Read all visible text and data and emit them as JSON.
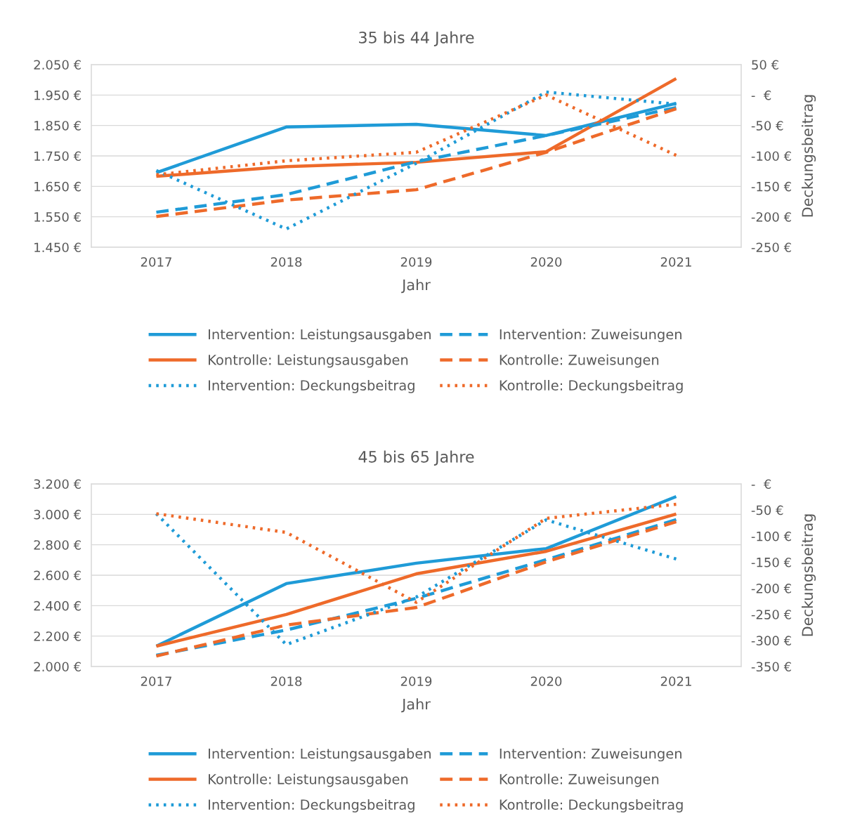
{
  "chart_data": [
    {
      "type": "line",
      "title": "35 bis 44 Jahre",
      "xlabel": "Jahr",
      "y2label": "Deckungsbeitrag",
      "categories": [
        "2017",
        "2018",
        "2019",
        "2020",
        "2021"
      ],
      "ylim": [
        1450,
        2050
      ],
      "yticks": [
        {
          "value": 1450,
          "label": "1.450 €"
        },
        {
          "value": 1550,
          "label": "1.550 €"
        },
        {
          "value": 1650,
          "label": "1.650 €"
        },
        {
          "value": 1750,
          "label": "1.750 €"
        },
        {
          "value": 1850,
          "label": "1.850 €"
        },
        {
          "value": 1950,
          "label": "1.950 €"
        },
        {
          "value": 2050,
          "label": "2.050 €"
        }
      ],
      "y2lim": [
        -250,
        50
      ],
      "y2ticks": [
        {
          "value": -250,
          "label": "-250 €"
        },
        {
          "value": -200,
          "label": "-200 €"
        },
        {
          "value": -150,
          "label": "-150 €"
        },
        {
          "value": -100,
          "label": "-100 €"
        },
        {
          "value": -50,
          "label": "-50 €"
        },
        {
          "value": 0,
          "label": "-  €"
        },
        {
          "value": 50,
          "label": "50 €"
        }
      ],
      "grid": "y",
      "legend": "bottom",
      "marker": "none",
      "series": [
        {
          "name": "Intervention: Leistungsausgaben",
          "color": "#1f9bd7",
          "line_style": "solid",
          "values": [
            1695,
            1845,
            1854,
            1817,
            1923
          ]
        },
        {
          "name": "Kontrolle: Leistungsausgaben",
          "color": "#ee6a2a",
          "line_style": "solid",
          "values": [
            1683,
            1715,
            1729,
            1764,
            2004
          ]
        },
        {
          "name": "Intervention: Deckungsbeitrag",
          "color": "#1f9bd7",
          "line_style": "dotted",
          "axis": "y2",
          "values": [
            -124,
            -220,
            -112,
            5,
            -15
          ]
        },
        {
          "name": "Intervention: Zuweisungen",
          "color": "#1f9bd7",
          "line_style": "dashed",
          "values": [
            1565,
            1623,
            1731,
            1817,
            1909
          ]
        },
        {
          "name": "Kontrolle: Zuweisungen",
          "color": "#ee6a2a",
          "line_style": "dashed",
          "values": [
            1551,
            1605,
            1639,
            1762,
            1905
          ]
        },
        {
          "name": "Kontrolle: Deckungsbeitrag",
          "color": "#ee6a2a",
          "line_style": "dotted",
          "axis": "y2",
          "values": [
            -131,
            -108,
            -94,
            0,
            -99
          ]
        }
      ]
    },
    {
      "type": "line",
      "title": "45 bis 65 Jahre",
      "xlabel": "Jahr",
      "y2label": "Deckungsbeitrag",
      "categories": [
        "2017",
        "2018",
        "2019",
        "2020",
        "2021"
      ],
      "ylim": [
        2000,
        3200
      ],
      "yticks": [
        {
          "value": 2000,
          "label": "2.000 €"
        },
        {
          "value": 2200,
          "label": "2.200 €"
        },
        {
          "value": 2400,
          "label": "2.400 €"
        },
        {
          "value": 2600,
          "label": "2.600 €"
        },
        {
          "value": 2800,
          "label": "2.800 €"
        },
        {
          "value": 3000,
          "label": "3.000 €"
        },
        {
          "value": 3200,
          "label": "3.200 €"
        }
      ],
      "y2lim": [
        -350,
        0
      ],
      "y2ticks": [
        {
          "value": -350,
          "label": "-350 €"
        },
        {
          "value": -300,
          "label": "-300 €"
        },
        {
          "value": -250,
          "label": "-250 €"
        },
        {
          "value": -200,
          "label": "-200 €"
        },
        {
          "value": -150,
          "label": "-150 €"
        },
        {
          "value": -100,
          "label": "-100 €"
        },
        {
          "value": -50,
          "label": "-50 €"
        },
        {
          "value": 0,
          "label": "-  €"
        }
      ],
      "grid": "y",
      "legend": "bottom",
      "marker": "none",
      "series": [
        {
          "name": "Intervention: Leistungsausgaben",
          "color": "#1f9bd7",
          "line_style": "solid",
          "values": [
            2134,
            2545,
            2679,
            2775,
            3117
          ]
        },
        {
          "name": "Kontrolle: Leistungsausgaben",
          "color": "#ee6a2a",
          "line_style": "solid",
          "values": [
            2134,
            2342,
            2609,
            2757,
            3002
          ]
        },
        {
          "name": "Intervention: Deckungsbeitrag",
          "color": "#1f9bd7",
          "line_style": "dotted",
          "axis": "y2",
          "values": [
            -57,
            -308,
            -217,
            -69,
            -144
          ]
        },
        {
          "name": "Intervention: Zuweisungen",
          "color": "#1f9bd7",
          "line_style": "dashed",
          "values": [
            2074,
            2240,
            2448,
            2702,
            2965
          ]
        },
        {
          "name": "Kontrolle: Zuweisungen",
          "color": "#ee6a2a",
          "line_style": "dashed",
          "values": [
            2069,
            2272,
            2388,
            2688,
            2951
          ]
        },
        {
          "name": "Kontrolle: Deckungsbeitrag",
          "color": "#ee6a2a",
          "line_style": "dotted",
          "axis": "y2",
          "values": [
            -57,
            -93,
            -227,
            -66,
            -39
          ]
        }
      ]
    }
  ]
}
